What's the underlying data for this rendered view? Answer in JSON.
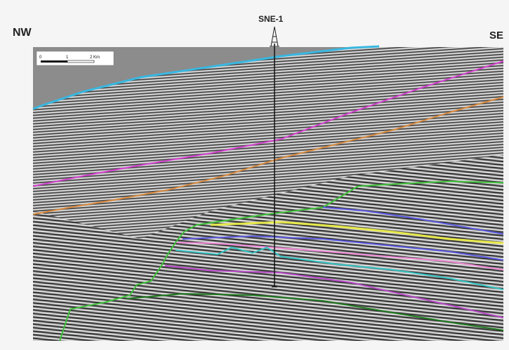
{
  "labels": {
    "left_direction": "NW",
    "right_direction": "SE",
    "well_name": "SNE-1"
  },
  "scale_bar": {
    "tick0": "0",
    "tick1": "1",
    "tick2": "2 Km"
  },
  "horizon_colors": {
    "seabed": "#39b7e0",
    "magenta": "#d43fd0",
    "orange": "#d98a3e",
    "green": "#3fc23a",
    "yellow": "#e6e84a",
    "blue": "#5a5ae0",
    "pink": "#f08ad8",
    "cyan": "#35c4c4",
    "purple": "#b84ac8",
    "dark_green": "#1f7a1f"
  }
}
